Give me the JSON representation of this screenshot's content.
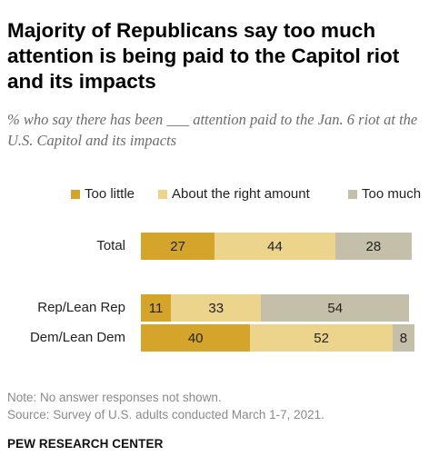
{
  "title": "Majority of Republicans say too much attention is being paid to the Capitol riot and its impacts",
  "subtitle": "% who say there has been ___ attention paid to the Jan. 6 riot at the U.S. Capitol and its impacts",
  "colors": {
    "too_little": "#d4a52a",
    "about_right": "#ecd48c",
    "too_much": "#c4bfa8"
  },
  "chart_data": {
    "type": "bar",
    "orientation": "horizontal",
    "stacked": true,
    "categories": [
      "Total",
      "Rep/Lean Rep",
      "Dem/Lean Dem"
    ],
    "series": [
      {
        "name": "Too little",
        "values": [
          27,
          11,
          40
        ]
      },
      {
        "name": "About the right amount",
        "values": [
          44,
          33,
          52
        ]
      },
      {
        "name": "Too much",
        "values": [
          28,
          54,
          8
        ]
      }
    ],
    "legend_position": "top",
    "grid": false
  },
  "notes": {
    "note": "Note: No answer responses not shown.",
    "source": "Source: Survey of U.S. adults conducted March 1-7, 2021."
  },
  "brand": "PEW RESEARCH CENTER"
}
